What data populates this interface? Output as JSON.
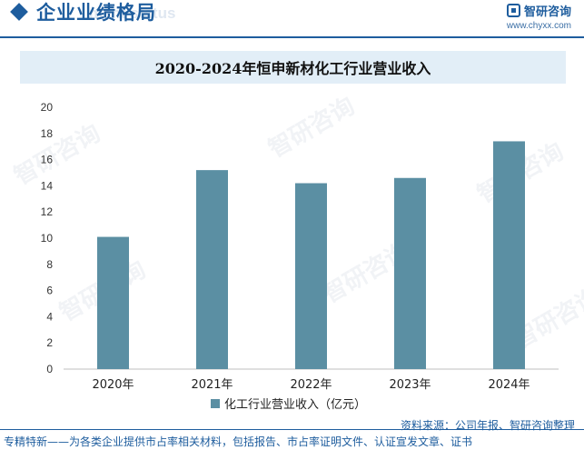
{
  "header": {
    "section_title": "企业业绩格局",
    "section_title_ghost": "ment status",
    "brand_name": "智研咨询",
    "brand_url": "www.chyxx.com"
  },
  "watermark": "智研咨询",
  "footer": {
    "source": "资料来源：公司年报、智研咨询整理",
    "note": "专精特新——为各类企业提供市占率相关材料，包括报告、市占率证明文件、认证宣发文章、证书"
  },
  "colors": {
    "bar": "#5b8fa3",
    "brand": "#1e5d9e",
    "title_bg": "#e2eef7"
  },
  "chart_data": {
    "type": "bar",
    "title": "2020-2024年恒申新材化工行业营业收入",
    "categories": [
      "2020年",
      "2021年",
      "2022年",
      "2023年",
      "2024年"
    ],
    "series": [
      {
        "name": "化工行业营业收入（亿元）",
        "values": [
          10.1,
          15.2,
          14.2,
          14.6,
          17.4
        ]
      }
    ],
    "ylim": [
      0,
      20
    ],
    "yticks": [
      0,
      2,
      4,
      6,
      8,
      10,
      12,
      14,
      16,
      18,
      20
    ],
    "grid": false,
    "legend": "bottom"
  }
}
